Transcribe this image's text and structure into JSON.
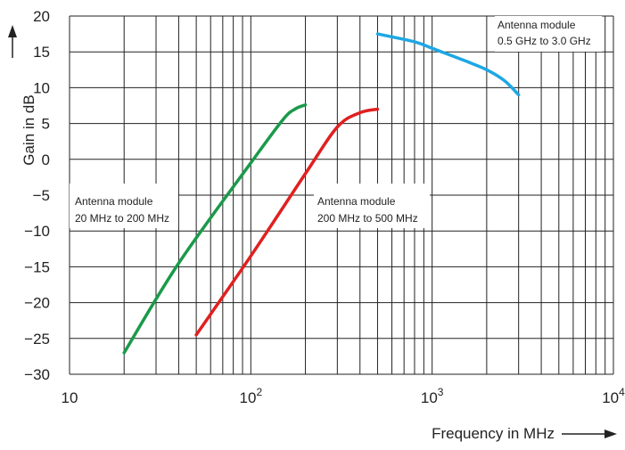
{
  "chart_data": {
    "type": "line",
    "xscale": "log",
    "xlim": [
      10,
      10000
    ],
    "ylim": [
      -30,
      20
    ],
    "grid": true,
    "xlabel": "Frequency in MHz",
    "ylabel": "Gain in dB",
    "x_ticks": [
      {
        "value": 10,
        "base": "10",
        "exp": ""
      },
      {
        "value": 100,
        "base": "10",
        "exp": "2"
      },
      {
        "value": 1000,
        "base": "10",
        "exp": "3"
      },
      {
        "value": 10000,
        "base": "10",
        "exp": "4"
      }
    ],
    "y_ticks": [
      "20",
      "15",
      "10",
      "5",
      "0",
      "−5",
      "−10",
      "−15",
      "−20",
      "−25",
      "−30"
    ],
    "series": [
      {
        "color": "#1a9a4a",
        "points": [
          [
            20,
            -27
          ],
          [
            40,
            -14.5
          ],
          [
            100,
            -0.5
          ],
          [
            150,
            5.5
          ],
          [
            175,
            7
          ],
          [
            200,
            7.6
          ]
        ]
      },
      {
        "color": "#e02020",
        "points": [
          [
            50,
            -24.5
          ],
          [
            100,
            -13.5
          ],
          [
            200,
            -2
          ],
          [
            300,
            4.5
          ],
          [
            400,
            6.5
          ],
          [
            500,
            7
          ]
        ]
      },
      {
        "color": "#1ea7e4",
        "points": [
          [
            500,
            17.5
          ],
          [
            800,
            16.4
          ],
          [
            1000,
            15.5
          ],
          [
            1500,
            13.8
          ],
          [
            2000,
            12.5
          ],
          [
            2500,
            11
          ],
          [
            3000,
            9
          ]
        ]
      }
    ],
    "annotations": [
      {
        "lines": [
          "Antenna module",
          "20 MHz to 200 MHz"
        ]
      },
      {
        "lines": [
          "Antenna module",
          "200 MHz to 500 MHz"
        ]
      },
      {
        "lines": [
          "Antenna module",
          "0.5 GHz to 3.0 GHz"
        ]
      }
    ]
  }
}
